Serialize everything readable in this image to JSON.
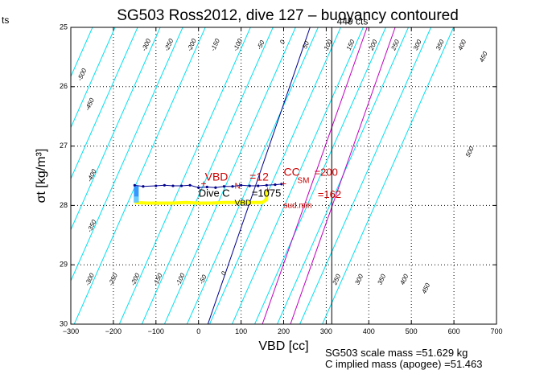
{
  "corner_text": "ts",
  "footer": {
    "scale_mass": "SG503 scale mass =51.629 kg",
    "implied_mass": "C      implied mass (apogee) =51.463"
  },
  "chart_data": {
    "type": "line",
    "title": "SG503 Ross2012, dive 127 – buoyancy contoured",
    "xlabel": "VBD [cc]",
    "ylabel": "σt [kg/m³]",
    "xlim": [
      -300,
      700
    ],
    "ylim": [
      25,
      30
    ],
    "y_reversed": true,
    "grid": true,
    "x_ticks": [
      -300,
      -200,
      -100,
      0,
      100,
      200,
      300,
      400,
      500,
      600,
      700
    ],
    "y_ticks": [
      25,
      26,
      27,
      28,
      29,
      30
    ],
    "x_tick_labels": [
      "−300",
      "−200",
      "−100",
      "0",
      "100",
      "200",
      "300",
      "400",
      "500",
      "600",
      "700"
    ],
    "y_tick_labels": [
      "25",
      "26",
      "27",
      "28",
      "29",
      "30"
    ],
    "contours": {
      "color": "#00e0f0",
      "values": [
        -500,
        -450,
        -400,
        -350,
        -300,
        -250,
        -200,
        -150,
        -100,
        -50,
        50,
        100,
        150,
        200,
        250,
        300,
        350,
        400,
        450,
        500
      ],
      "bottom_x": [
        -770,
        -716,
        -663,
        -610,
        -557,
        -504,
        -451,
        -398,
        -345,
        -292,
        -186,
        -133,
        -80,
        -27,
        26,
        79,
        132,
        185,
        238,
        291
      ],
      "top_x": [
        -461,
        -408,
        -355,
        -302,
        -249,
        -196,
        -143,
        -90,
        -37,
        16,
        122,
        175,
        228,
        281,
        334,
        387,
        440,
        493,
        546,
        599
      ]
    },
    "contour_labels": [
      {
        "text": "-500",
        "x": -273,
        "y": 25.8
      },
      {
        "text": "-450",
        "x": -255,
        "y": 26.3
      },
      {
        "text": "-400",
        "x": -250,
        "y": 27.5
      },
      {
        "text": "-350",
        "x": -250,
        "y": 28.35
      },
      {
        "text": "-300",
        "x": -255,
        "y": 29.25
      },
      {
        "text": "-300",
        "x": -122,
        "y": 25.3
      },
      {
        "text": "-250",
        "x": -69,
        "y": 25.3
      },
      {
        "text": "-200",
        "x": -15,
        "y": 25.3
      },
      {
        "text": "-150",
        "x": 40,
        "y": 25.3
      },
      {
        "text": "-100",
        "x": 93,
        "y": 25.3
      },
      {
        "text": "-50",
        "x": 147,
        "y": 25.3
      },
      {
        "text": "0",
        "x": 198,
        "y": 25.25
      },
      {
        "text": "50",
        "x": 253,
        "y": 25.3
      },
      {
        "text": "100",
        "x": 305,
        "y": 25.3
      },
      {
        "text": "150",
        "x": 358,
        "y": 25.3
      },
      {
        "text": "200",
        "x": 411,
        "y": 25.3
      },
      {
        "text": "250",
        "x": 463,
        "y": 25.3
      },
      {
        "text": "300",
        "x": 515,
        "y": 25.3
      },
      {
        "text": "350",
        "x": 568,
        "y": 25.3
      },
      {
        "text": "400",
        "x": 620,
        "y": 25.3
      },
      {
        "text": "450",
        "x": 670,
        "y": 25.5
      },
      {
        "text": "-250",
        "x": -200,
        "y": 29.25
      },
      {
        "text": "-200",
        "x": -148,
        "y": 29.25
      },
      {
        "text": "-150",
        "x": -95,
        "y": 29.25
      },
      {
        "text": "-100",
        "x": -42,
        "y": 29.25
      },
      {
        "text": "-50",
        "x": 11,
        "y": 29.25
      },
      {
        "text": "0",
        "x": 60,
        "y": 29.15
      },
      {
        "text": "250",
        "x": 325,
        "y": 29.25
      },
      {
        "text": "300",
        "x": 378,
        "y": 29.25
      },
      {
        "text": "350",
        "x": 431,
        "y": 29.25
      },
      {
        "text": "400",
        "x": 484,
        "y": 29.25
      },
      {
        "text": "450",
        "x": 535,
        "y": 29.4
      },
      {
        "text": "500",
        "x": 638,
        "y": 27.1
      }
    ],
    "reference_lines": [
      {
        "name": "neutral",
        "color": "#00008b",
        "points": [
          [
            22,
            30
          ],
          [
            262,
            25
          ]
        ]
      },
      {
        "name": "cc_sm",
        "color": "#c000c0",
        "points": [
          [
            150,
            30
          ],
          [
            396,
            25
          ]
        ]
      },
      {
        "name": "cc_sud_min",
        "color": "#c000c0",
        "points": [
          [
            216,
            30
          ],
          [
            462,
            25
          ]
        ]
      },
      {
        "name": "vertical",
        "color": "#000000",
        "points": [
          [
            313,
            25
          ],
          [
            313,
            30
          ]
        ]
      }
    ],
    "dive_trace": {
      "color": "#00008b",
      "x": [
        -150,
        -130,
        -100,
        -80,
        -60,
        -40,
        -20,
        0,
        20,
        40,
        60,
        80,
        100,
        120,
        140,
        160,
        180,
        195
      ],
      "y": [
        27.66,
        27.68,
        27.67,
        27.66,
        27.67,
        27.67,
        27.66,
        27.7,
        27.69,
        27.7,
        27.68,
        27.68,
        27.66,
        27.67,
        27.67,
        27.66,
        27.65,
        27.64
      ]
    },
    "climb_trace": {
      "color": "#ffff00",
      "x": [
        -150,
        -120,
        -90,
        -60,
        -30,
        0,
        30,
        60,
        90,
        120,
        150,
        160,
        160
      ],
      "y": [
        27.95,
        27.96,
        27.96,
        27.96,
        27.95,
        27.96,
        27.96,
        27.95,
        27.95,
        27.95,
        27.95,
        27.9,
        27.75
      ]
    },
    "annotations": [
      {
        "text": "449 cts",
        "x": 325,
        "y": 24.95,
        "color": "#000000",
        "size": 12
      },
      {
        "text": "VBD",
        "x": 15,
        "y": 27.58,
        "color": "#cc0000",
        "size": 14
      },
      {
        "text": "N",
        "x": 85,
        "y": 27.72,
        "color": "#cc0000",
        "size": 10
      },
      {
        "text": "=12",
        "x": 120,
        "y": 27.58,
        "color": "#cc0000",
        "size": 14
      },
      {
        "text": "Dive C",
        "x": 0,
        "y": 27.85,
        "color": "#000000",
        "size": 13
      },
      {
        "text": "VBD",
        "x": 85,
        "y": 28.0,
        "color": "#000000",
        "size": 10
      },
      {
        "text": "=1075",
        "x": 125,
        "y": 27.85,
        "color": "#000000",
        "size": 13
      },
      {
        "text": "CC",
        "x": 200,
        "y": 27.5,
        "color": "#cc0000",
        "size": 14
      },
      {
        "text": "SM",
        "x": 232,
        "y": 27.62,
        "color": "#cc0000",
        "size": 10
      },
      {
        "text": "=200",
        "x": 272,
        "y": 27.5,
        "color": "#cc0000",
        "size": 13
      },
      {
        "text": "sud.min",
        "x": 200,
        "y": 28.04,
        "color": "#cc0000",
        "size": 10
      },
      {
        "text": "=162",
        "x": 280,
        "y": 27.87,
        "color": "#cc0000",
        "size": 13
      }
    ],
    "markers": [
      {
        "x": 12,
        "y": 27.65,
        "color": "#cc0000",
        "symbol": "+"
      },
      {
        "x": 200,
        "y": 27.65,
        "color": "#cc0000",
        "symbol": "+"
      },
      {
        "x": 162,
        "y": 27.75,
        "color": "#cc0000",
        "symbol": "+"
      }
    ]
  }
}
